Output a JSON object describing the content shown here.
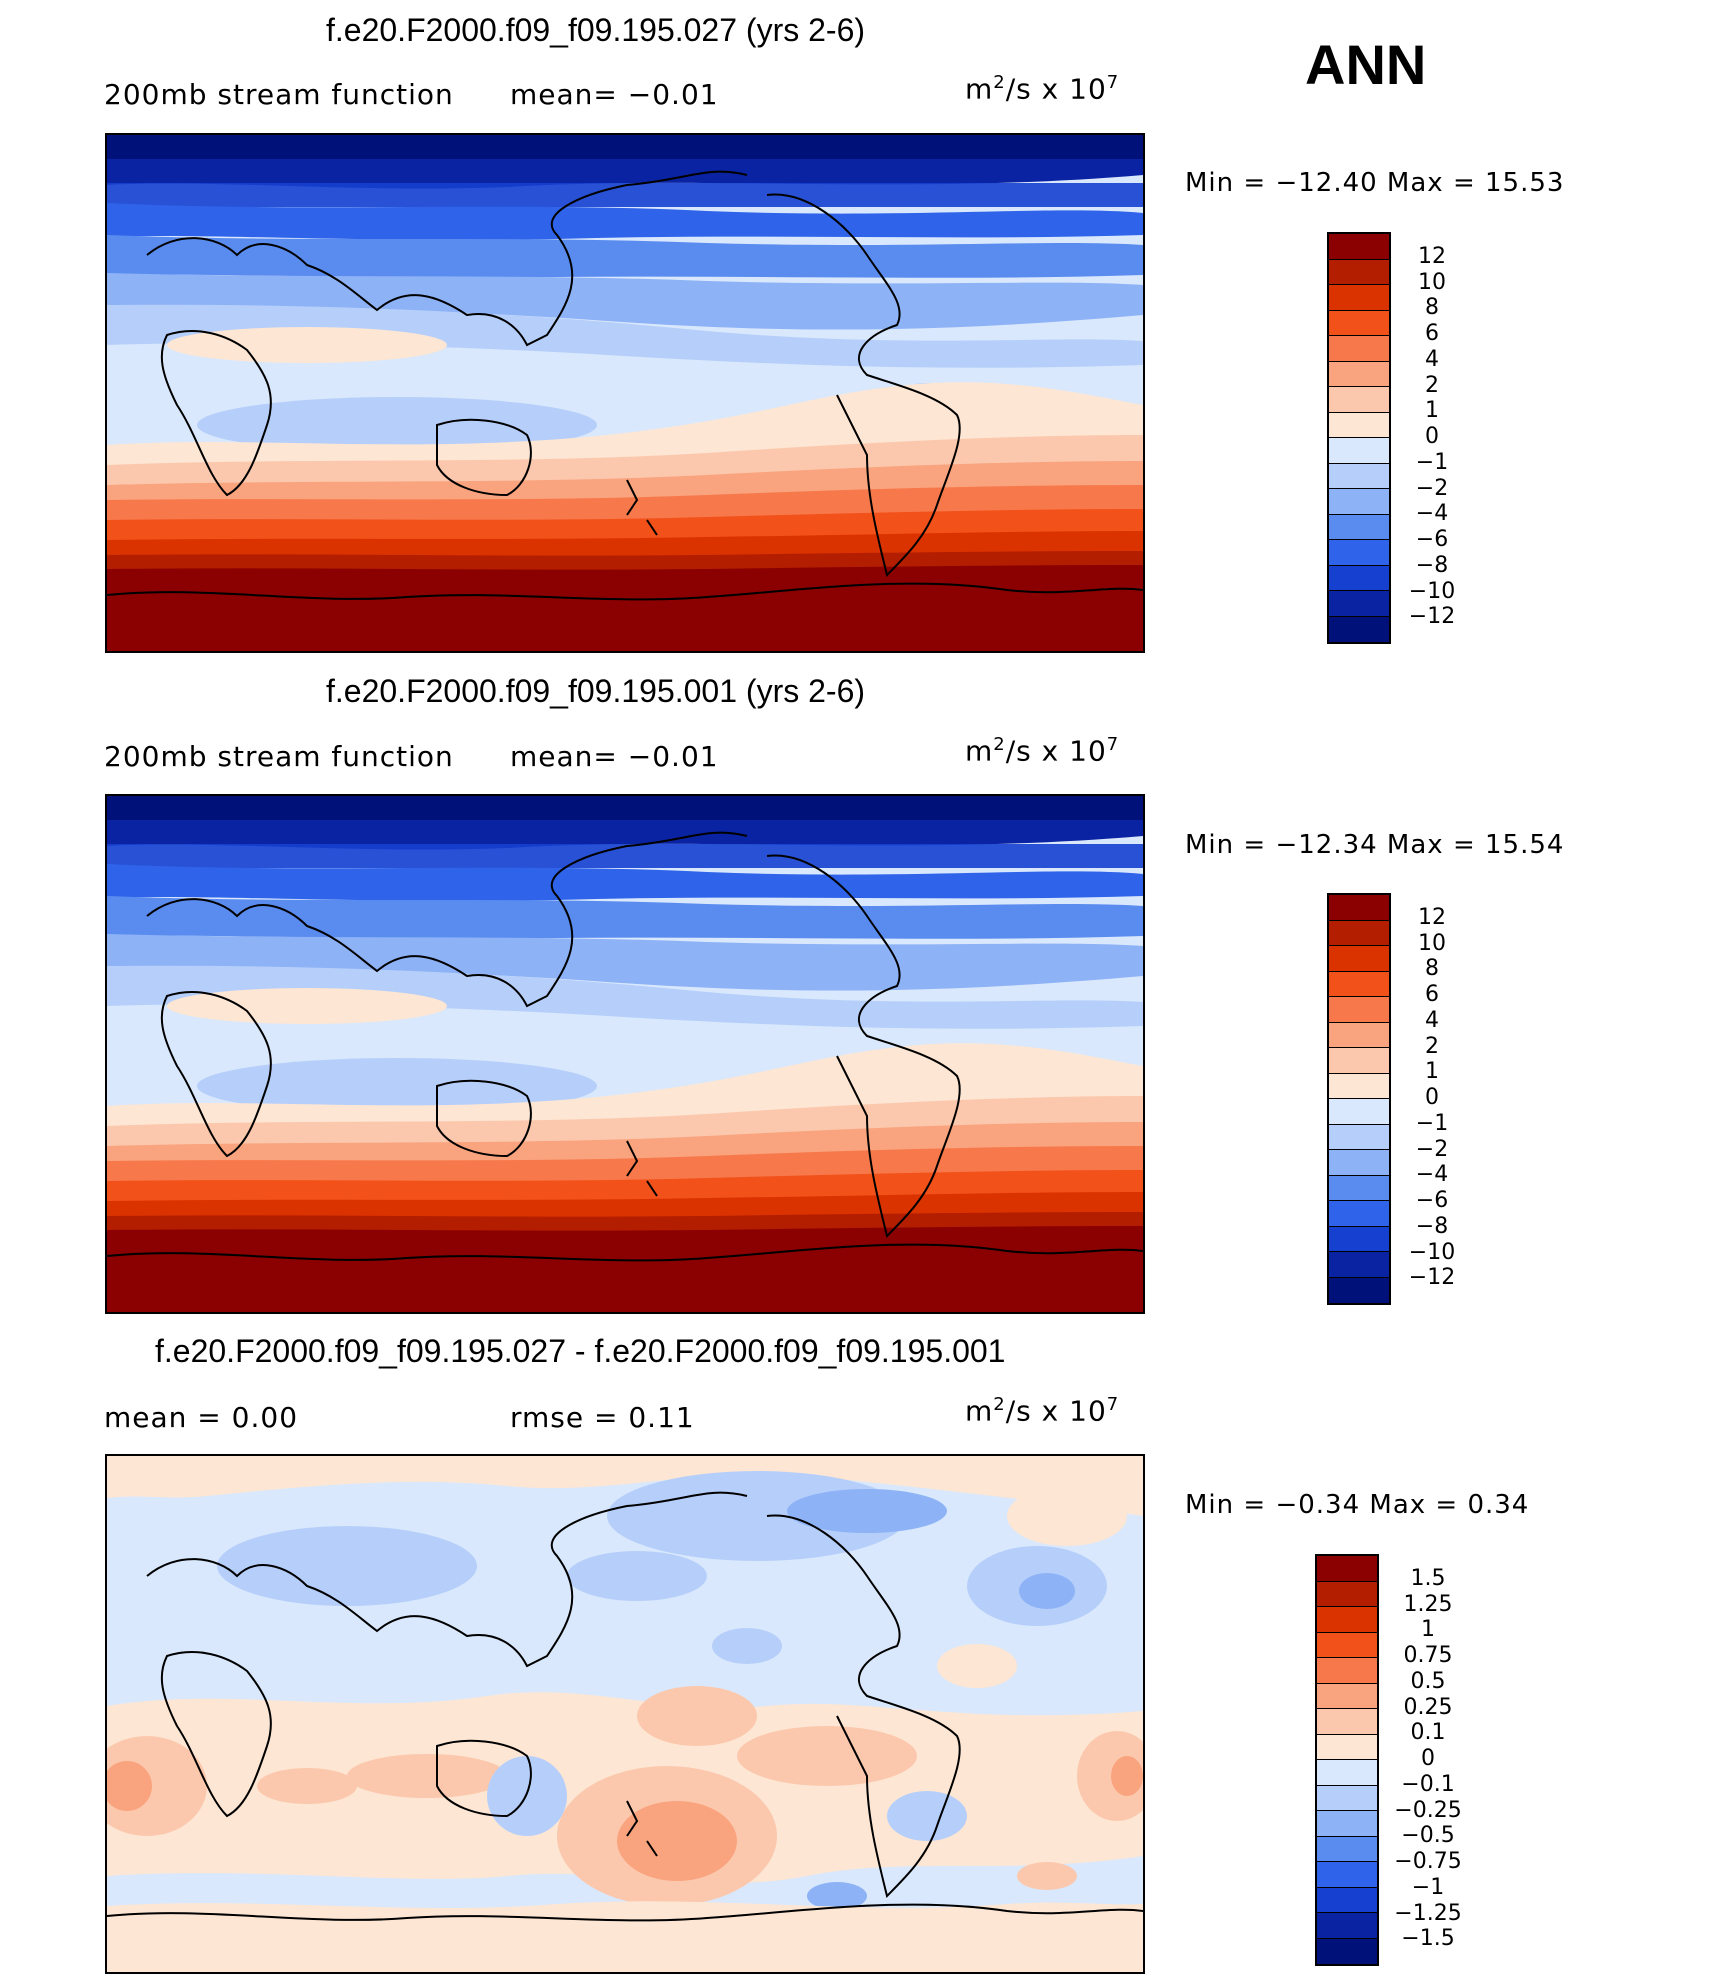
{
  "season": "ANN",
  "units": {
    "prefix": "m",
    "exp1": "2",
    "mid": "/s  x  10",
    "exp2": "7"
  },
  "panels": [
    {
      "title": "f.e20.F2000.f09_f09.195.027 (yrs 2-6)",
      "subtitle_left": "200mb  stream  function",
      "subtitle_right": "mean=   −0.01",
      "min_label": "Min  =  −12.40  Max  =    15.53",
      "colorbar": {
        "labels": [
          "12",
          "10",
          "8",
          "6",
          "4",
          "2",
          "1",
          "0",
          "−1",
          "−2",
          "−4",
          "−6",
          "−8",
          "−10",
          "−12"
        ],
        "colors": [
          "#8b0000",
          "#b31d00",
          "#db3300",
          "#f2511a",
          "#f7784a",
          "#f9a47e",
          "#fcc8ad",
          "#fde6d3",
          "#d9e8fc",
          "#b6cffa",
          "#8db2f6",
          "#5a8cf0",
          "#2f64ea",
          "#1540d0",
          "#0a23a3",
          "#00127a"
        ]
      }
    },
    {
      "title": "f.e20.F2000.f09_f09.195.001 (yrs 2-6)",
      "subtitle_left": "200mb  stream  function",
      "subtitle_right": "mean=   −0.01",
      "min_label": "Min  =  −12.34  Max  =    15.54",
      "colorbar": {
        "labels": [
          "12",
          "10",
          "8",
          "6",
          "4",
          "2",
          "1",
          "0",
          "−1",
          "−2",
          "−4",
          "−6",
          "−8",
          "−10",
          "−12"
        ],
        "colors": [
          "#8b0000",
          "#b31d00",
          "#db3300",
          "#f2511a",
          "#f7784a",
          "#f9a47e",
          "#fcc8ad",
          "#fde6d3",
          "#d9e8fc",
          "#b6cffa",
          "#8db2f6",
          "#5a8cf0",
          "#2f64ea",
          "#1540d0",
          "#0a23a3",
          "#00127a"
        ]
      }
    },
    {
      "title": "f.e20.F2000.f09_f09.195.027 - f.e20.F2000.f09_f09.195.001",
      "subtitle_left": "mean  =      0.00",
      "subtitle_right": "rmse  =      0.11",
      "min_label": "Min  =      −0.34  Max  =      0.34",
      "colorbar": {
        "labels": [
          "1.5",
          "1.25",
          "1",
          "0.75",
          "0.5",
          "0.25",
          "0.1",
          "0",
          "−0.1",
          "−0.25",
          "−0.5",
          "−0.75",
          "−1",
          "−1.25",
          "−1.5"
        ],
        "colors": [
          "#8b0000",
          "#b31d00",
          "#db3300",
          "#f2511a",
          "#f7784a",
          "#f9a47e",
          "#fcc8ad",
          "#fde6d3",
          "#d9e8fc",
          "#b6cffa",
          "#8db2f6",
          "#5a8cf0",
          "#2f64ea",
          "#1540d0",
          "#0a23a3",
          "#00127a"
        ]
      }
    }
  ]
}
